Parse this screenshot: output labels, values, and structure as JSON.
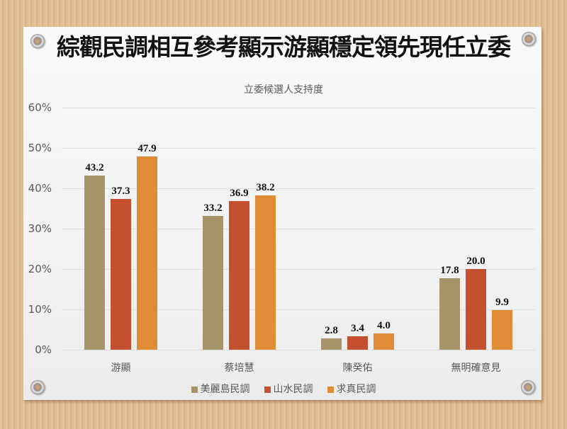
{
  "page": {
    "title": "綜觀民調相互參考顯示游顯穩定領先現任立委"
  },
  "chart_data": {
    "type": "bar",
    "title": "立委候選人支持度",
    "xlabel": "",
    "ylabel": "",
    "categories": [
      "游顯",
      "蔡培慧",
      "陳癸佑",
      "無明確意見"
    ],
    "series": [
      {
        "name": "美麗島民調",
        "color": "#A8946A",
        "values": [
          43.2,
          33.2,
          2.8,
          17.8
        ]
      },
      {
        "name": "山水民調",
        "color": "#C5502F",
        "values": [
          37.3,
          36.9,
          3.4,
          20.0
        ]
      },
      {
        "name": "求真民調",
        "color": "#E08B36",
        "values": [
          47.9,
          38.2,
          4.0,
          9.9
        ]
      }
    ],
    "ylim": [
      0,
      60
    ],
    "yticks": [
      "0%",
      "10%",
      "20%",
      "30%",
      "40%",
      "50%",
      "60%"
    ],
    "grid": true,
    "legend_position": "bottom",
    "data_labels": true
  }
}
